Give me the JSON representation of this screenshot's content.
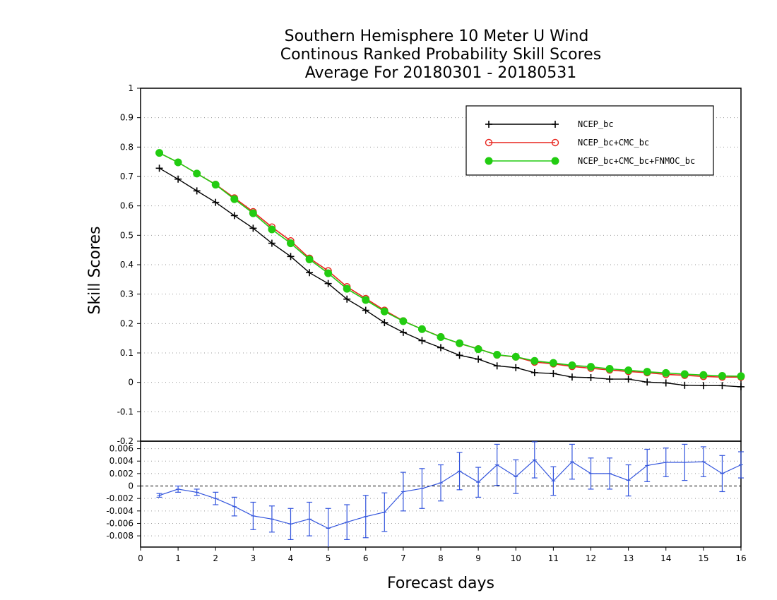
{
  "title": {
    "line1": "Southern Hemisphere 10 Meter U Wind",
    "line2": "Continous Ranked Probability Skill Scores",
    "line3": "Average For 20180301 - 20180531"
  },
  "axes": {
    "xlabel": "Forecast days",
    "ylabel": "Skill Scores"
  },
  "colors": {
    "ncep": "#000000",
    "ncep_cmc": "#e8251e",
    "ncep_cmc_fnmoc": "#22cc11",
    "diff": "#3355dd"
  },
  "chart_data": [
    {
      "type": "line",
      "xlim": [
        0,
        16
      ],
      "ylim": [
        -0.2,
        1.0
      ],
      "x_ticks": [
        "0",
        "1",
        "2",
        "3",
        "4",
        "5",
        "6",
        "7",
        "8",
        "9",
        "10",
        "11",
        "12",
        "13",
        "14",
        "15",
        "16"
      ],
      "y_ticks": [
        "1",
        "0.9",
        "0.8",
        "0.7",
        "0.6",
        "0.5",
        "0.4",
        "0.3",
        "0.2",
        "0.1",
        "0",
        "-0.1",
        "-0.2"
      ],
      "grid": true,
      "legend_position": "top-right",
      "x": [
        0.5,
        1,
        1.5,
        2,
        2.5,
        3,
        3.5,
        4,
        4.5,
        5,
        5.5,
        6,
        6.5,
        7,
        7.5,
        8,
        8.5,
        9,
        9.5,
        10,
        10.5,
        11,
        11.5,
        12,
        12.5,
        13,
        13.5,
        14,
        14.5,
        15,
        15.5,
        16
      ],
      "series": [
        {
          "name": "NCEP_bc",
          "marker": "plus",
          "values": [
            0.728,
            0.691,
            0.651,
            0.612,
            0.567,
            0.524,
            0.473,
            0.428,
            0.373,
            0.336,
            0.283,
            0.245,
            0.203,
            0.17,
            0.142,
            0.118,
            0.092,
            0.079,
            0.056,
            0.05,
            0.033,
            0.03,
            0.018,
            0.016,
            0.011,
            0.011,
            0.001,
            -0.002,
            -0.01,
            -0.011,
            -0.011,
            -0.015
          ]
        },
        {
          "name": "NCEP_bc+CMC_bc",
          "marker": "open-circle",
          "values": [
            0.78,
            0.748,
            0.71,
            0.673,
            0.627,
            0.58,
            0.528,
            0.481,
            0.422,
            0.379,
            0.325,
            0.285,
            0.245,
            0.209,
            0.181,
            0.155,
            0.132,
            0.114,
            0.093,
            0.086,
            0.069,
            0.063,
            0.054,
            0.048,
            0.042,
            0.037,
            0.033,
            0.027,
            0.024,
            0.02,
            0.018,
            0.018
          ]
        },
        {
          "name": "NCEP_bc+CMC_bc+FNMOC_bc",
          "marker": "filled-circle",
          "values": [
            0.78,
            0.748,
            0.71,
            0.672,
            0.623,
            0.575,
            0.52,
            0.473,
            0.418,
            0.371,
            0.318,
            0.28,
            0.241,
            0.208,
            0.181,
            0.154,
            0.133,
            0.113,
            0.094,
            0.087,
            0.073,
            0.066,
            0.058,
            0.053,
            0.046,
            0.041,
            0.036,
            0.032,
            0.028,
            0.025,
            0.022,
            0.021
          ]
        }
      ]
    },
    {
      "type": "line",
      "xlim": [
        0,
        16
      ],
      "ylim": [
        -0.0098,
        0.0072
      ],
      "y_ticks": [
        "0.006",
        "0.004",
        "0.002",
        "0",
        "-0.002",
        "-0.004",
        "-0.006",
        "-0.008"
      ],
      "grid": true,
      "reference_line": 0,
      "x": [
        0.5,
        1,
        1.5,
        2,
        2.5,
        3,
        3.5,
        4,
        4.5,
        5,
        5.5,
        6,
        6.5,
        7,
        7.5,
        8,
        8.5,
        9,
        9.5,
        10,
        10.5,
        11,
        11.5,
        12,
        12.5,
        13,
        13.5,
        14,
        14.5,
        15,
        15.5,
        16
      ],
      "values": [
        -0.0015,
        -0.0005,
        -0.001,
        -0.002,
        -0.0033,
        -0.0048,
        -0.0053,
        -0.0061,
        -0.0053,
        -0.0068,
        -0.0058,
        -0.0049,
        -0.0042,
        -0.0009,
        -0.0004,
        0.0005,
        0.0024,
        0.0006,
        0.0034,
        0.0015,
        0.0042,
        0.0008,
        0.0039,
        0.002,
        0.002,
        0.0009,
        0.0033,
        0.0038,
        0.0038,
        0.0039,
        0.002,
        0.0034
      ],
      "error_low": [
        -0.0018,
        -0.001,
        -0.0015,
        -0.003,
        -0.0048,
        -0.007,
        -0.0074,
        -0.0086,
        -0.008,
        -0.01,
        -0.0086,
        -0.0083,
        -0.0073,
        -0.004,
        -0.0036,
        -0.0024,
        -0.0006,
        -0.0018,
        0.0001,
        -0.0012,
        0.0013,
        -0.0015,
        0.0011,
        -0.0005,
        -0.0005,
        -0.0016,
        0.0007,
        0.0015,
        0.0009,
        0.0015,
        -0.0009,
        0.0013
      ],
      "error_high": [
        -0.0012,
        0.0,
        -0.0005,
        -0.001,
        -0.0018,
        -0.0026,
        -0.0032,
        -0.0036,
        -0.0026,
        -0.0036,
        -0.003,
        -0.0015,
        -0.0011,
        0.0022,
        0.0028,
        0.0034,
        0.0054,
        0.003,
        0.0067,
        0.0042,
        0.0071,
        0.0031,
        0.0067,
        0.0045,
        0.0045,
        0.0034,
        0.0059,
        0.0061,
        0.0067,
        0.0063,
        0.0049,
        0.0055
      ]
    }
  ]
}
